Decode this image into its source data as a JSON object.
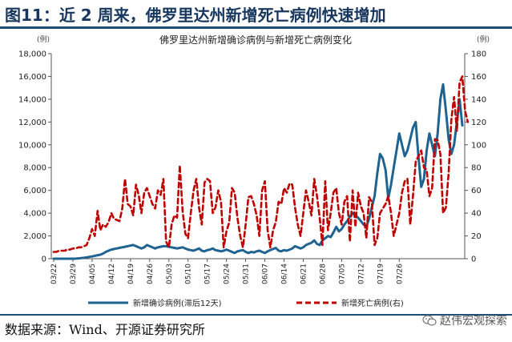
{
  "figure_title": "图11：近 2 周来，佛罗里达州新增死亡病例快速增加",
  "source_text": "数据来源：Wind、开源证券研究所",
  "watermark_text": "赵伟宏观探索",
  "watermark_icon": "wechat-icon",
  "colors": {
    "title": "#17375e",
    "rule": "#1f4e79",
    "cases": "#1f6391",
    "deaths": "#c00000"
  },
  "chart_data": {
    "type": "line",
    "title": "佛罗里达州新增确诊病例与新增死亡病例变化",
    "left_axis": {
      "unit_label": "(例)",
      "ylim": [
        0,
        18000
      ],
      "ticks": [
        "0",
        "2,000",
        "4,000",
        "6,000",
        "8,000",
        "10,000",
        "12,000",
        "14,000",
        "16,000",
        "18,000"
      ]
    },
    "right_axis": {
      "unit_label": "(例)",
      "ylim": [
        0,
        180
      ],
      "ticks": [
        "0",
        "20",
        "40",
        "60",
        "80",
        "100",
        "120",
        "140",
        "160",
        "180"
      ]
    },
    "x_tick_labels": [
      "03/22",
      "03/29",
      "04/05",
      "04/12",
      "04/19",
      "04/26",
      "05/03",
      "05/10",
      "05/17",
      "05/24",
      "05/31",
      "06/07",
      "06/14",
      "06/21",
      "06/28",
      "07/05",
      "07/12",
      "07/19",
      "07/26"
    ],
    "grid": false,
    "legend_position": "bottom",
    "series": [
      {
        "name": "新增确诊病例(滞后12天)",
        "axis": "left",
        "style": "solid",
        "values": [
          0,
          0,
          0,
          0,
          0,
          0,
          0,
          0,
          10,
          30,
          50,
          80,
          120,
          160,
          200,
          250,
          300,
          350,
          450,
          600,
          700,
          800,
          850,
          900,
          950,
          1000,
          1050,
          1100,
          1150,
          1200,
          1100,
          1000,
          900,
          1000,
          1200,
          1100,
          1000,
          900,
          1000,
          1050,
          1100,
          1100,
          1050,
          1000,
          950,
          900,
          950,
          1000,
          900,
          800,
          750,
          700,
          800,
          900,
          700,
          650,
          750,
          800,
          900,
          750,
          700,
          650,
          700,
          800,
          700,
          600,
          500,
          650,
          700,
          750,
          600,
          500,
          600,
          550,
          650,
          700,
          600,
          500,
          650,
          750,
          850,
          950,
          700,
          650,
          750,
          700,
          800,
          900,
          1100,
          1000,
          900,
          1000,
          1200,
          1300,
          1400,
          1600,
          1300,
          1200,
          1600,
          1800,
          2000,
          1900,
          2300,
          2800,
          2400,
          2600,
          3000,
          3300,
          3700,
          4000,
          3800,
          3600,
          3300,
          3000,
          2800,
          3500,
          4500,
          5500,
          7500,
          9200,
          8800,
          7800,
          5300,
          6500,
          8000,
          9500,
          11000,
          10000,
          9000,
          9500,
          10500,
          11500,
          12000,
          9000,
          6300,
          7000,
          9500,
          11000,
          10000,
          9000,
          11000,
          14000,
          15300,
          13000,
          10500,
          9200,
          10000,
          12000,
          14000,
          11700
        ]
      },
      {
        "name": "新增死亡病例(右)",
        "axis": "right",
        "style": "dashed",
        "values": [
          6,
          6,
          7,
          7,
          7,
          8,
          8,
          9,
          9,
          10,
          10,
          11,
          12,
          18,
          26,
          20,
          42,
          25,
          30,
          28,
          32,
          40,
          35,
          34,
          33,
          44,
          70,
          48,
          46,
          38,
          65,
          56,
          40,
          58,
          62,
          55,
          48,
          44,
          60,
          56,
          70,
          15,
          10,
          30,
          38,
          36,
          82,
          42,
          22,
          18,
          40,
          60,
          70,
          45,
          30,
          67,
          70,
          68,
          40,
          45,
          60,
          50,
          10,
          24,
          32,
          62,
          58,
          36,
          20,
          10,
          30,
          54,
          55,
          48,
          38,
          20,
          60,
          68,
          25,
          10,
          25,
          32,
          50,
          48,
          62,
          58,
          66,
          65,
          45,
          30,
          20,
          40,
          60,
          50,
          38,
          70,
          55,
          36,
          12,
          68,
          25,
          40,
          58,
          62,
          40,
          30,
          50,
          55,
          15,
          60,
          28,
          58,
          46,
          40,
          18,
          54,
          50,
          12,
          18,
          40,
          44,
          48,
          55,
          40,
          20,
          30,
          40,
          58,
          68,
          70,
          30,
          55,
          85,
          90,
          95,
          80,
          78,
          55,
          62,
          105,
          104,
          92,
          40,
          45,
          75,
          122,
          142,
          112,
          155,
          160,
          130,
          120
        ]
      }
    ]
  }
}
